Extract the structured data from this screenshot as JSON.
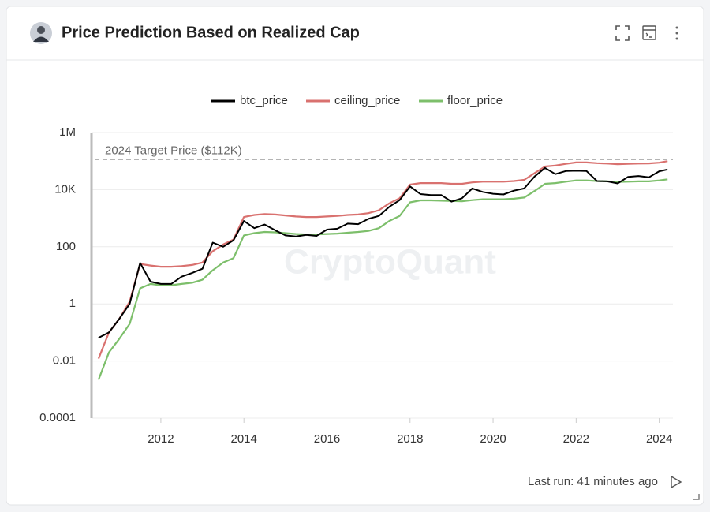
{
  "header": {
    "title": "Price Prediction Based on Realized Cap"
  },
  "chart_data": {
    "type": "line",
    "log_scale": true,
    "grid": true,
    "watermark": "CryptoQuant",
    "target_line": {
      "value": 112000,
      "label": "2024 Target Price ($112K)"
    },
    "x": [
      2010.5,
      2010.75,
      2011.0,
      2011.25,
      2011.5,
      2011.75,
      2012.0,
      2012.25,
      2012.5,
      2012.75,
      2013.0,
      2013.25,
      2013.5,
      2013.75,
      2014.0,
      2014.25,
      2014.5,
      2014.75,
      2015.0,
      2015.25,
      2015.5,
      2015.75,
      2016.0,
      2016.25,
      2016.5,
      2016.75,
      2017.0,
      2017.25,
      2017.5,
      2017.75,
      2018.0,
      2018.25,
      2018.5,
      2018.75,
      2019.0,
      2019.25,
      2019.5,
      2019.75,
      2020.0,
      2020.25,
      2020.5,
      2020.75,
      2021.0,
      2021.25,
      2021.5,
      2021.75,
      2022.0,
      2022.25,
      2022.5,
      2022.75,
      2023.0,
      2023.25,
      2023.5,
      2023.75,
      2024.0,
      2024.2
    ],
    "series": [
      {
        "name": "btc_price",
        "color": "#000000",
        "values": [
          0.065,
          0.1,
          0.3,
          1,
          27,
          6,
          5,
          5,
          9,
          12,
          17,
          140,
          100,
          170,
          800,
          450,
          600,
          380,
          250,
          230,
          260,
          240,
          400,
          430,
          650,
          620,
          950,
          1200,
          2500,
          4300,
          13000,
          7000,
          6500,
          6500,
          3800,
          5000,
          11000,
          8300,
          7200,
          6800,
          9200,
          11000,
          29000,
          58000,
          35000,
          45000,
          46000,
          45000,
          20000,
          19500,
          16500,
          28000,
          30000,
          27000,
          44000,
          51000
        ]
      },
      {
        "name": "ceiling_price",
        "color": "#d9716f",
        "values": [
          0.012,
          0.1,
          0.3,
          1.2,
          25,
          22,
          20,
          20,
          21,
          23,
          28,
          70,
          120,
          180,
          1100,
          1300,
          1400,
          1350,
          1250,
          1150,
          1100,
          1100,
          1150,
          1200,
          1300,
          1350,
          1500,
          1900,
          3300,
          5000,
          15000,
          17000,
          17000,
          17000,
          16000,
          16000,
          18000,
          19000,
          19000,
          19000,
          20000,
          22000,
          38000,
          65000,
          70000,
          80000,
          90000,
          90000,
          85000,
          82000,
          78000,
          80000,
          82000,
          83000,
          88000,
          100000
        ]
      },
      {
        "name": "floor_price",
        "color": "#7dbf6b",
        "values": [
          0.0022,
          0.02,
          0.06,
          0.2,
          3.5,
          5,
          4.5,
          4.5,
          5,
          5.5,
          7,
          15,
          28,
          40,
          250,
          300,
          330,
          320,
          300,
          280,
          270,
          270,
          280,
          290,
          310,
          330,
          360,
          450,
          800,
          1200,
          3600,
          4200,
          4200,
          4100,
          4000,
          3900,
          4300,
          4600,
          4600,
          4600,
          4800,
          5300,
          9000,
          16000,
          17000,
          19000,
          21000,
          21000,
          20000,
          19500,
          18500,
          19000,
          19500,
          19500,
          21000,
          23000
        ]
      }
    ],
    "xlim": [
      2010.33,
      2024.33
    ],
    "xticks": [
      2012,
      2014,
      2016,
      2018,
      2020,
      2022,
      2024
    ],
    "ylim": [
      0.0001,
      1000000
    ],
    "yticks": [
      0.0001,
      0.01,
      1,
      100,
      {
        "value": 10000,
        "label": "10K"
      },
      {
        "value": 1000000,
        "label": "1M"
      }
    ]
  },
  "footer": {
    "last_run": "Last run: 41 minutes ago"
  }
}
